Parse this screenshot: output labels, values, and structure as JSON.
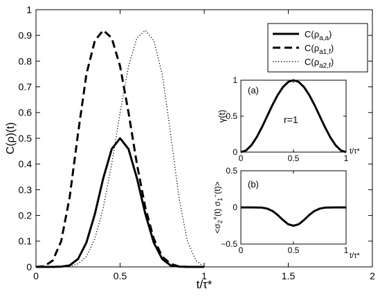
{
  "chart_data": [
    {
      "type": "line",
      "title": "",
      "xlabel": "t/τ*",
      "ylabel": "C(ρ)(t)",
      "xlim": [
        0,
        2
      ],
      "ylim": [
        0,
        1
      ],
      "xticks": [
        "0",
        "0.5",
        "1",
        "1.5",
        "2"
      ],
      "yticks": [
        "0",
        "0.1",
        "0.2",
        "0.3",
        "0.4",
        "0.5",
        "0.6",
        "0.7",
        "0.8",
        "0.9",
        "1"
      ],
      "legend_position": "top-right",
      "series": [
        {
          "name": "C(ρa,a)",
          "legend_main": "C(ρ",
          "legend_sub": "a,a",
          "legend_close": ")",
          "style": "solid",
          "x": [
            0,
            0.05,
            0.1,
            0.15,
            0.2,
            0.25,
            0.3,
            0.35,
            0.4,
            0.45,
            0.5,
            0.55,
            0.6,
            0.65,
            0.7,
            0.75,
            0.8,
            0.85,
            0.9,
            0.95,
            1.0
          ],
          "y": [
            0,
            0,
            0,
            0.001,
            0.006,
            0.031,
            0.095,
            0.206,
            0.345,
            0.458,
            0.5,
            0.458,
            0.345,
            0.206,
            0.095,
            0.031,
            0.006,
            0.001,
            0,
            0,
            0
          ]
        },
        {
          "name": "C(ρa1,f)",
          "legend_main": "C(ρ",
          "legend_sub": "a1,f",
          "legend_close": ")",
          "style": "dashed",
          "x": [
            0,
            0.05,
            0.1,
            0.15,
            0.2,
            0.25,
            0.3,
            0.35,
            0.4,
            0.45,
            0.5,
            0.55,
            0.6,
            0.65,
            0.7,
            0.75,
            0.8,
            0.85,
            0.9,
            0.95,
            1.0
          ],
          "y": [
            0,
            0.003,
            0.025,
            0.1,
            0.27,
            0.52,
            0.75,
            0.88,
            0.92,
            0.89,
            0.78,
            0.6,
            0.4,
            0.23,
            0.11,
            0.04,
            0.012,
            0.002,
            0,
            0,
            0
          ]
        },
        {
          "name": "C(ρa2,f)",
          "legend_main": "C(ρ",
          "legend_sub": "a2,f",
          "legend_close": ")",
          "style": "dotted",
          "x": [
            0,
            0.05,
            0.1,
            0.15,
            0.2,
            0.25,
            0.3,
            0.35,
            0.4,
            0.45,
            0.5,
            0.55,
            0.6,
            0.65,
            0.7,
            0.75,
            0.8,
            0.85,
            0.9,
            0.95,
            1.0
          ],
          "y": [
            0,
            0,
            0,
            0,
            0.002,
            0.012,
            0.04,
            0.11,
            0.23,
            0.4,
            0.6,
            0.78,
            0.89,
            0.92,
            0.88,
            0.75,
            0.52,
            0.27,
            0.1,
            0.025,
            0
          ]
        }
      ]
    },
    {
      "type": "line",
      "panel_label": "(a)",
      "annotation": "r=1",
      "xlabel": "t/τ*",
      "ylabel": "γ(t)",
      "xlim": [
        0,
        1
      ],
      "ylim": [
        0,
        1
      ],
      "xticks": [
        "0",
        "0.5",
        "1"
      ],
      "yticks": [
        "0",
        "0.5",
        "1"
      ],
      "series": [
        {
          "style": "solid",
          "x": [
            0,
            0.05,
            0.1,
            0.15,
            0.2,
            0.25,
            0.3,
            0.35,
            0.4,
            0.45,
            0.5,
            0.55,
            0.6,
            0.65,
            0.7,
            0.75,
            0.8,
            0.85,
            0.9,
            0.95,
            1.0
          ],
          "y": [
            0,
            0.024,
            0.095,
            0.206,
            0.345,
            0.5,
            0.655,
            0.794,
            0.905,
            0.976,
            1.0,
            0.976,
            0.905,
            0.794,
            0.655,
            0.5,
            0.345,
            0.206,
            0.095,
            0.024,
            0
          ]
        }
      ]
    },
    {
      "type": "line",
      "panel_label": "(b)",
      "xlabel": "t/τ*",
      "ylabel": "<σ2+(t) σ1−(t)>",
      "ylabel_parts": [
        "<σ",
        "2",
        "+",
        "(t) σ",
        "1",
        "−",
        "(t)>"
      ],
      "xlim": [
        0,
        1
      ],
      "ylim": [
        -0.5,
        0.5
      ],
      "xticks": [
        "0",
        "0.5",
        "1"
      ],
      "yticks": [
        "−0.5",
        "0",
        "0.5"
      ],
      "series": [
        {
          "style": "solid",
          "x": [
            0,
            0.05,
            0.1,
            0.15,
            0.2,
            0.25,
            0.3,
            0.35,
            0.4,
            0.45,
            0.5,
            0.55,
            0.6,
            0.65,
            0.7,
            0.75,
            0.8,
            0.85,
            0.9,
            0.95,
            1.0
          ],
          "y": [
            0,
            0,
            0,
            -0.001,
            -0.003,
            -0.016,
            -0.048,
            -0.103,
            -0.172,
            -0.229,
            -0.25,
            -0.229,
            -0.172,
            -0.103,
            -0.048,
            -0.016,
            -0.003,
            -0.001,
            0,
            0,
            0
          ]
        }
      ]
    }
  ]
}
